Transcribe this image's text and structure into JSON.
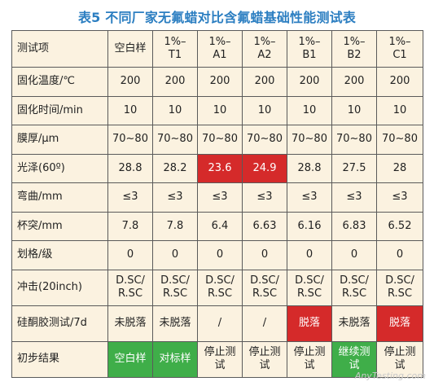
{
  "title": "表5 不同厂家无氟蜡对比含氟蜡基础性能测试表",
  "columns": [
    "测试项",
    "空白样",
    "1%–\nT1",
    "1%–\nA1",
    "1%–\nA2",
    "1%–\nB1",
    "1%–\nB2",
    "1%–\nC1"
  ],
  "rows": [
    {
      "label": "固化温度/℃",
      "cells": [
        "200",
        "200",
        "200",
        "200",
        "200",
        "200",
        "200"
      ]
    },
    {
      "label": "固化时间/min",
      "cells": [
        "10",
        "10",
        "10",
        "10",
        "10",
        "10",
        "10"
      ]
    },
    {
      "label": "膜厚/μm",
      "cells": [
        "70~80",
        "70~80",
        "70~80",
        "70~80",
        "70~80",
        "70~80",
        "70~80"
      ]
    },
    {
      "label": "光泽(60º)",
      "cells": [
        "28.8",
        "28.2",
        "23.6",
        "24.9",
        "28.8",
        "27.5",
        "28"
      ]
    },
    {
      "label": "弯曲/mm",
      "cells": [
        "≤3",
        "≤3",
        "≤3",
        "≤3",
        "≤3",
        "≤3",
        "≤3"
      ]
    },
    {
      "label": "杯突/mm",
      "cells": [
        "7.8",
        "7.8",
        "6.4",
        "6.63",
        "6.16",
        "6.83",
        "6.52"
      ]
    },
    {
      "label": "划格/级",
      "cells": [
        "0",
        "0",
        "0",
        "0",
        "0",
        "0",
        "0"
      ]
    },
    {
      "label": "冲击(20inch)",
      "cells": [
        "D.SC/\nR.SC",
        "D.SC/\nR.SC",
        "D.SC/\nR.SC",
        "D.SC/\nR.SC",
        "D.SC/\nR.SC",
        "D.SC/\nR.SC",
        "D.SC/\nR.SC"
      ]
    },
    {
      "label": "硅酮胶测试/7d",
      "cells": [
        "未脱落",
        "未脱落",
        "/",
        "/",
        "脱落",
        "未脱落",
        "脱落"
      ]
    },
    {
      "label": "初步结果",
      "cells": [
        "空白样",
        "对标样",
        "停止测\n试",
        "停止测\n试",
        "停止测\n试",
        "继续测\n试",
        "停止测\n试"
      ]
    }
  ],
  "highlights": {
    "red": "#d52a2a",
    "green": "#3fae49",
    "cell_bg": "#fbf2e0"
  },
  "watermark": "AnyTesting.com"
}
